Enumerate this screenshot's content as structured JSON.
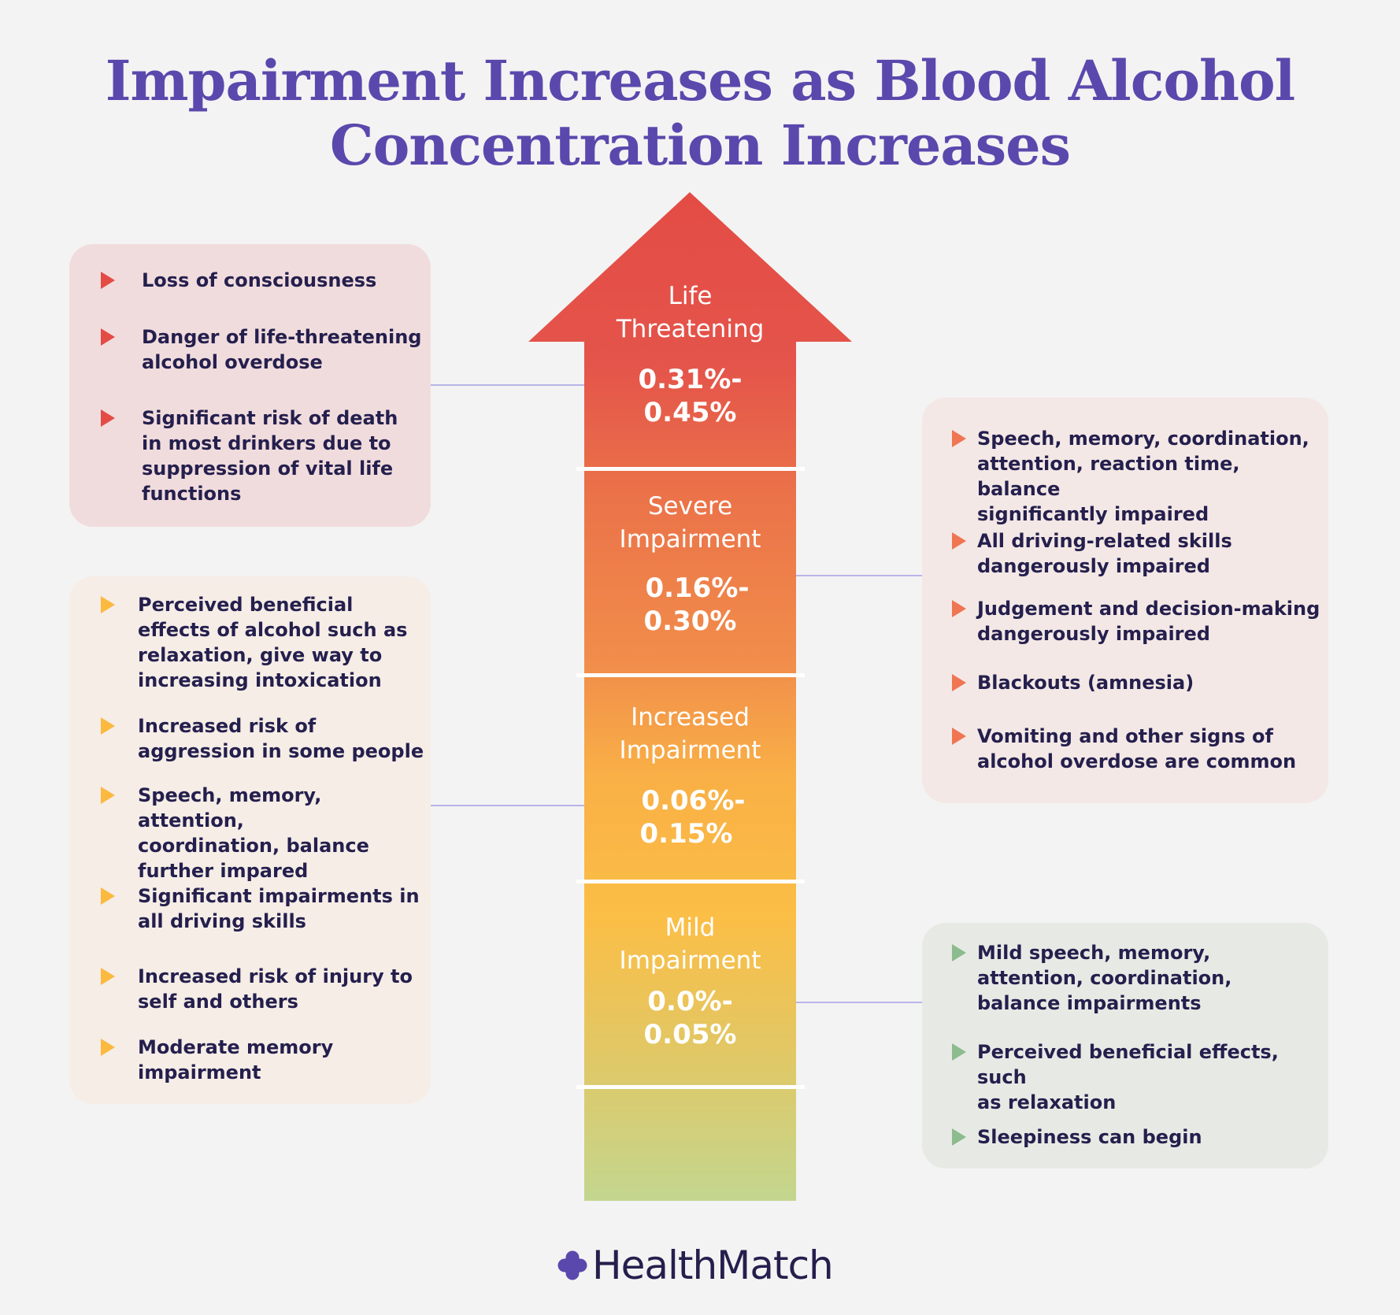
{
  "title": {
    "line1": "Impairment Increases as Blood Alcohol",
    "line2": "Concentration Increases"
  },
  "levels": [
    {
      "label_line1": "Life",
      "label_line2": "Threatening",
      "range_line1": "0.31%-",
      "range_line2": "0.45%"
    },
    {
      "label_line1": "Severe",
      "label_line2": "Impairment",
      "range_line1": "0.16%-",
      "range_line2": "0.30%"
    },
    {
      "label_line1": "Increased",
      "label_line2": "Impairment",
      "range_line1": "0.06%-",
      "range_line2": "0.15%"
    },
    {
      "label_line1": "Mild",
      "label_line2": "Impairment",
      "range_line1": "0.0%-",
      "range_line2": "0.05%"
    }
  ],
  "life_threatening_effects": [
    [
      "Loss of consciousness"
    ],
    [
      "Danger of life-threatening",
      "alcohol overdose"
    ],
    [
      "Significant risk of death",
      "in most drinkers due to",
      "suppression of vital life",
      "functions"
    ]
  ],
  "severe_effects": [
    [
      "Speech, memory, coordination,",
      "attention, reaction time, balance",
      "significantly impaired"
    ],
    [
      "All driving-related skills",
      "dangerously impaired"
    ],
    [
      "Judgement and decision-making",
      "dangerously impaired"
    ],
    [
      "Blackouts (amnesia)"
    ],
    [
      "Vomiting and other signs of",
      "alcohol overdose are common"
    ]
  ],
  "increased_effects": [
    [
      "Perceived beneficial",
      "effects of alcohol such as",
      "relaxation, give way to",
      "increasing intoxication"
    ],
    [
      "Increased risk of",
      "aggression in some people"
    ],
    [
      "Speech, memory, attention,",
      "coordination, balance",
      "further impared"
    ],
    [
      "Significant impairments in",
      "all driving skills"
    ],
    [
      "Increased risk of injury to",
      "self and others"
    ],
    [
      "Moderate memory",
      "impairment"
    ]
  ],
  "mild_effects": [
    [
      "Mild speech, memory,",
      "attention, coordination,",
      "balance impairments"
    ],
    [
      "Perceived beneficial effects, such",
      "as relaxation"
    ],
    [
      "Sleepiness can begin"
    ]
  ],
  "brand": {
    "name": "HealthMatch",
    "icon": "plus-cross-icon"
  },
  "colors": {
    "title": "#5b48ad",
    "life": "#e34c45",
    "severe": "#ee7a4c",
    "increased": "#fbb93f",
    "mild": "#e7c762",
    "base": "#c3d68f",
    "connector": "#b7b5e8",
    "box_life": "#f1dcdd",
    "box_severe": "#f3e8e5",
    "box_increased": "#f5ede6",
    "box_mild": "#e7eae4",
    "tri_life": "#e34c45",
    "tri_severe": "#ef7553",
    "tri_increased": "#fbb93f",
    "tri_mild": "#8cbb8d"
  }
}
